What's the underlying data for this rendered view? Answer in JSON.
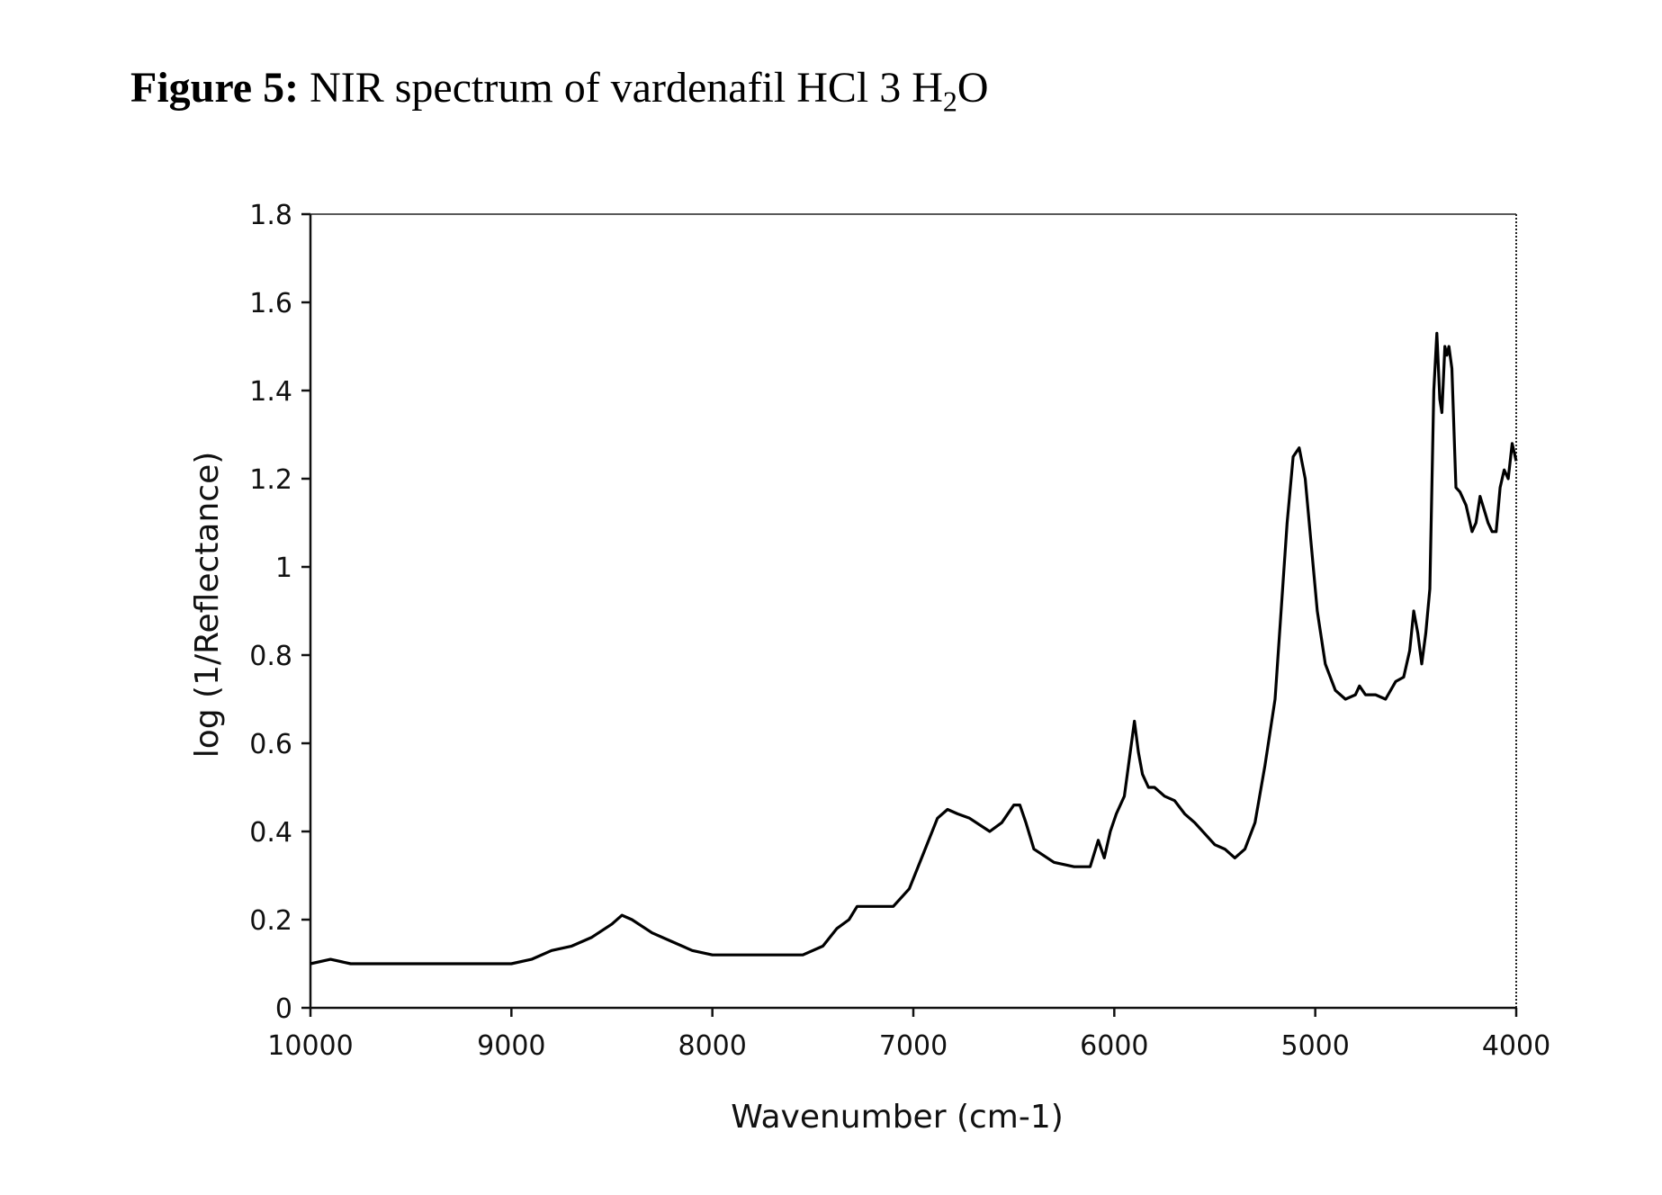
{
  "figure": {
    "label": "Figure 5:",
    "title_main": " NIR spectrum of vardenafil HCl 3 H",
    "title_sub": "2",
    "title_end": "O"
  },
  "chart_data": {
    "type": "line",
    "xlabel": "Wavenumber (cm-1)",
    "ylabel": "log (1/Reflectance)",
    "xlim": [
      10000,
      4000
    ],
    "ylim": [
      0,
      1.8
    ],
    "x_ticks": [
      10000,
      9000,
      8000,
      7000,
      6000,
      5000,
      4000
    ],
    "x_tick_labels": [
      "10000",
      "9000",
      "8000",
      "7000",
      "6000",
      "5000",
      "4000"
    ],
    "y_ticks": [
      0,
      0.2,
      0.4,
      0.6,
      0.8,
      1,
      1.2,
      1.4,
      1.6,
      1.8
    ],
    "y_tick_labels": [
      "0",
      "0.2",
      "0.4",
      "0.6",
      "0.8",
      "1",
      "1.2",
      "1.4",
      "1.6",
      "1.8"
    ],
    "grid": false,
    "legend": "none",
    "series": [
      {
        "color": "#000000",
        "x": [
          10000,
          9900,
          9800,
          9500,
          9200,
          9000,
          8900,
          8800,
          8700,
          8600,
          8500,
          8450,
          8400,
          8300,
          8200,
          8100,
          8000,
          7900,
          7700,
          7550,
          7450,
          7380,
          7320,
          7280,
          7200,
          7100,
          7020,
          6950,
          6880,
          6830,
          6780,
          6720,
          6620,
          6560,
          6500,
          6470,
          6440,
          6400,
          6300,
          6200,
          6120,
          6080,
          6050,
          6020,
          5990,
          5950,
          5900,
          5880,
          5860,
          5830,
          5800,
          5750,
          5700,
          5650,
          5600,
          5500,
          5450,
          5400,
          5350,
          5300,
          5250,
          5200,
          5170,
          5140,
          5110,
          5080,
          5050,
          5020,
          4990,
          4950,
          4900,
          4850,
          4800,
          4780,
          4750,
          4700,
          4650,
          4600,
          4560,
          4530,
          4510,
          4490,
          4470,
          4450,
          4430,
          4410,
          4395,
          4380,
          4370,
          4355,
          4345,
          4335,
          4320,
          4300,
          4280,
          4250,
          4220,
          4200,
          4180,
          4160,
          4140,
          4120,
          4100,
          4080,
          4060,
          4040,
          4020,
          4000
        ],
        "y": [
          0.1,
          0.11,
          0.1,
          0.1,
          0.1,
          0.1,
          0.11,
          0.13,
          0.14,
          0.16,
          0.19,
          0.21,
          0.2,
          0.17,
          0.15,
          0.13,
          0.12,
          0.12,
          0.12,
          0.12,
          0.14,
          0.18,
          0.2,
          0.23,
          0.23,
          0.23,
          0.27,
          0.35,
          0.43,
          0.45,
          0.44,
          0.43,
          0.4,
          0.42,
          0.46,
          0.46,
          0.42,
          0.36,
          0.33,
          0.32,
          0.32,
          0.38,
          0.34,
          0.4,
          0.44,
          0.48,
          0.65,
          0.58,
          0.53,
          0.5,
          0.5,
          0.48,
          0.47,
          0.44,
          0.42,
          0.37,
          0.36,
          0.34,
          0.36,
          0.42,
          0.55,
          0.7,
          0.9,
          1.1,
          1.25,
          1.27,
          1.2,
          1.05,
          0.9,
          0.78,
          0.72,
          0.7,
          0.71,
          0.73,
          0.71,
          0.71,
          0.7,
          0.74,
          0.75,
          0.81,
          0.9,
          0.85,
          0.78,
          0.85,
          0.95,
          1.4,
          1.53,
          1.38,
          1.35,
          1.5,
          1.48,
          1.5,
          1.45,
          1.18,
          1.17,
          1.14,
          1.08,
          1.1,
          1.16,
          1.13,
          1.1,
          1.08,
          1.08,
          1.18,
          1.22,
          1.2,
          1.28,
          1.24
        ]
      }
    ]
  }
}
